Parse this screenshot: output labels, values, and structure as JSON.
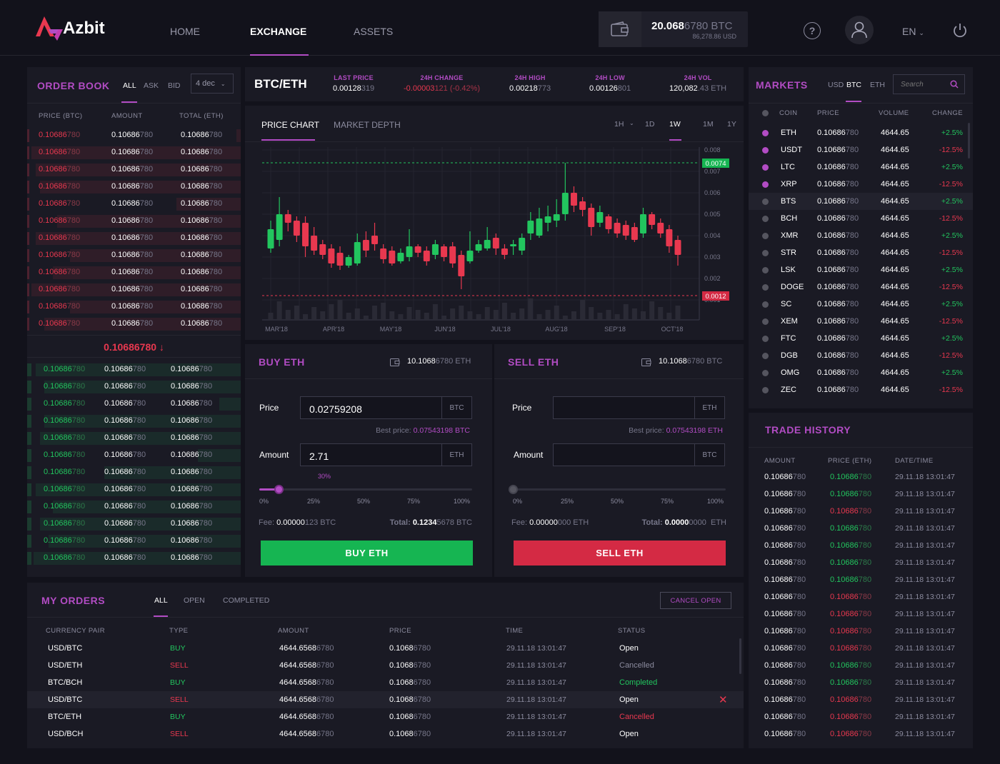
{
  "header": {
    "logo": "Azbit",
    "nav": [
      "HOME",
      "EXCHANGE",
      "ASSETS"
    ],
    "balance_btc_main": "20.068",
    "balance_btc_tail": "6780 BTC",
    "balance_usd": "86,278.86 USD",
    "lang": "EN"
  },
  "orderbook": {
    "title": "ORDER BOOK",
    "tabs": [
      "ALL",
      "ASK",
      "BID"
    ],
    "decimals": "4 dec",
    "cols": [
      "PRICE (BTC)",
      "AMOUNT",
      "TOTAL (ETH)"
    ],
    "val_main": "0.10686",
    "val_tail": "780",
    "mid_price": "0.10686780 ↓",
    "ask_count": 12,
    "bid_count": 12
  },
  "pair": {
    "name": "BTC/ETH",
    "stats": [
      {
        "label": "LAST PRICE",
        "main": "0.00128",
        "tail": "319",
        "color": "#fff"
      },
      {
        "label": "24H CHANGE",
        "main": "-0.00003",
        "tail": "121 (-0.42%)",
        "color": "#e8384f"
      },
      {
        "label": "24H HIGH",
        "main": "0.00218",
        "tail": "773",
        "color": "#fff"
      },
      {
        "label": "24H LOW",
        "main": "0.00126",
        "tail": "801",
        "color": "#fff"
      },
      {
        "label": "24H VOL",
        "main": "120,082",
        "tail": ".43 ETH",
        "color": "#fff"
      }
    ]
  },
  "chart": {
    "tabs": [
      "PRICE CHART",
      "MARKET DEPTH"
    ],
    "intervals": [
      "1H",
      "1D",
      "1W",
      "1M",
      "1Y"
    ],
    "active_interval": "1W",
    "y_ticks": [
      "0.008",
      "0.007",
      "0.006",
      "0.005",
      "0.004",
      "0.003",
      "0.002",
      "0.001"
    ],
    "x_ticks": [
      "MAR'18",
      "APR'18",
      "MAY'18",
      "JUN'18",
      "JUL'18",
      "AUG'18",
      "SEP'18",
      "OCT'18"
    ],
    "hi_label": "0.0074",
    "lo_label": "0.0012"
  },
  "buy": {
    "title": "BUY ETH",
    "balance_main": "10.1068",
    "balance_tail": "6780 ETH",
    "price_label": "Price",
    "price": "0.02759208",
    "price_cur": "BTC",
    "best_label": "Best price:",
    "best": "0.07543198 BTC",
    "amount_label": "Amount",
    "amount": "2.71",
    "amount_cur": "ETH",
    "pct": "30%",
    "pct_value": 30,
    "ticks": [
      "0%",
      "25%",
      "50%",
      "75%",
      "100%"
    ],
    "fee_label": "Fee:",
    "fee_main": "0.00000",
    "fee_tail": "123 BTC",
    "total_label": "Total:",
    "total_main": "0.1234",
    "total_tail": "5678 BTC",
    "button": "BUY ETH"
  },
  "sell": {
    "title": "SELL ETH",
    "balance_main": "10.1068",
    "balance_tail": "6780 BTC",
    "price_label": "Price",
    "price_cur": "ETH",
    "best_label": "Best price:",
    "best": "0.07543198 ETH",
    "amount_label": "Amount",
    "amount_cur": "BTC",
    "ticks": [
      "0%",
      "25%",
      "50%",
      "75%",
      "100%"
    ],
    "fee_label": "Fee:",
    "fee_main": "0.00000",
    "fee_tail": "000 ETH",
    "total_label": "Total:",
    "total_main": "0.0000",
    "total_tail": "0000  ETH",
    "button": "SELL ETH"
  },
  "markets": {
    "title": "MARKETS",
    "tabs": [
      "USD",
      "BTC",
      "ETH"
    ],
    "search_placeholder": "Search",
    "cols": [
      "COIN",
      "PRICE",
      "VOLUME",
      "CHANGE"
    ],
    "rows": [
      {
        "coin": "ETH",
        "vol": "4644.65",
        "chg": "+2.5%",
        "fav": true
      },
      {
        "coin": "USDT",
        "vol": "4644.65",
        "chg": "-12.5%",
        "fav": true
      },
      {
        "coin": "LTC",
        "vol": "4644.65",
        "chg": "+2.5%",
        "fav": true
      },
      {
        "coin": "XRP",
        "vol": "4644.65",
        "chg": "-12.5%",
        "fav": true
      },
      {
        "coin": "BTS",
        "vol": "4644.65",
        "chg": "+2.5%",
        "fav": false
      },
      {
        "coin": "BCH",
        "vol": "4644.65",
        "chg": "-12.5%",
        "fav": false
      },
      {
        "coin": "XMR",
        "vol": "4644.65",
        "chg": "+2.5%",
        "fav": false
      },
      {
        "coin": "STR",
        "vol": "4644.65",
        "chg": "-12.5%",
        "fav": false
      },
      {
        "coin": "LSK",
        "vol": "4644.65",
        "chg": "+2.5%",
        "fav": false
      },
      {
        "coin": "DOGE",
        "vol": "4644.65",
        "chg": "-12.5%",
        "fav": false
      },
      {
        "coin": "SC",
        "vol": "4644.65",
        "chg": "+2.5%",
        "fav": false
      },
      {
        "coin": "XEM",
        "vol": "4644.65",
        "chg": "-12.5%",
        "fav": false
      },
      {
        "coin": "FTC",
        "vol": "4644.65",
        "chg": "+2.5%",
        "fav": false
      },
      {
        "coin": "DGB",
        "vol": "4644.65",
        "chg": "-12.5%",
        "fav": false
      },
      {
        "coin": "OMG",
        "vol": "4644.65",
        "chg": "+2.5%",
        "fav": false
      },
      {
        "coin": "ZEC",
        "vol": "4644.65",
        "chg": "-12.5%",
        "fav": false
      }
    ]
  },
  "trades": {
    "title": "TRADE HISTORY",
    "cols": [
      "AMOUNT",
      "PRICE (ETH)",
      "DATE/TIME"
    ],
    "time": "29.11.18 13:01:47",
    "sides": [
      "g",
      "g",
      "r",
      "g",
      "g",
      "g",
      "g",
      "r",
      "r",
      "r",
      "r",
      "g",
      "g",
      "r",
      "r",
      "r"
    ]
  },
  "orders": {
    "title": "MY ORDERS",
    "tabs": [
      "ALL",
      "OPEN",
      "COMPLETED"
    ],
    "cancel": "CANCEL OPEN",
    "cols": [
      "CURRENCY PAIR",
      "TYPE",
      "AMOUNT",
      "PRICE",
      "TIME",
      "STATUS"
    ],
    "rows": [
      {
        "pair": "USD/BTC",
        "type": "BUY",
        "status": "Open"
      },
      {
        "pair": "USD/ETH",
        "type": "SELL",
        "status": "Cancelled"
      },
      {
        "pair": "BTC/BCH",
        "type": "BUY",
        "status": "Completed"
      },
      {
        "pair": "USD/BTC",
        "type": "SELL",
        "status": "Open"
      },
      {
        "pair": "BTC/ETH",
        "type": "BUY",
        "status": "Cancelled"
      },
      {
        "pair": "USD/BCH",
        "type": "SELL",
        "status": "Open"
      }
    ],
    "amount_main": "4644.6568",
    "amount_tail": "6780",
    "price_main": "0.1068",
    "price_tail": "6780",
    "time": "29.11.18 13:01:47"
  }
}
